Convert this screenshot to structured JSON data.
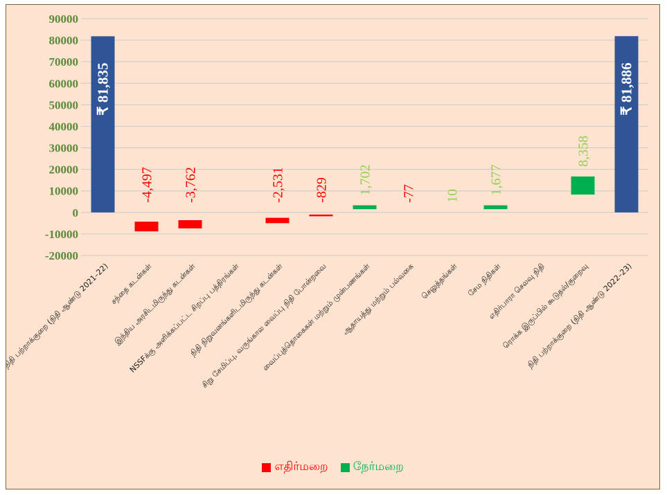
{
  "colors": {
    "negative": "#ff0000",
    "positive": "#00b050",
    "total": "#2f5597",
    "grid": "#c9c9c9",
    "axis_text": "#5b8a3a",
    "background": "#fde3d0",
    "positive_label": "#92d050"
  },
  "legend": {
    "negative_label": "எதிர்மறை",
    "positive_label": "நேர்மறை"
  },
  "chart_data": {
    "type": "bar",
    "subtype": "waterfall",
    "ylim": [
      -20000,
      90000
    ],
    "yticks": [
      90000,
      80000,
      70000,
      60000,
      50000,
      40000,
      30000,
      20000,
      10000,
      0,
      -10000,
      -20000
    ],
    "ytick_labels": [
      "90000",
      "80000",
      "70000",
      "60000",
      "50000",
      "40000",
      "30000",
      "20000",
      "10000",
      "0",
      "-10000",
      "-20000"
    ],
    "grid": true,
    "legend_position": "bottom",
    "bars": [
      {
        "category": "நிதி பற்றாக்குறை (நிதி ஆண்டு 2021–22)",
        "kind": "total",
        "low": 0,
        "high": 81835,
        "label": "₹ 81,835"
      },
      {
        "category": "சந்தை கடன்கள்",
        "kind": "negative",
        "low": -8800,
        "high": -4300,
        "label": "-4,497"
      },
      {
        "category": "இந்திய அரசிடமிருந்து கடன்கள்",
        "kind": "negative",
        "low": -7400,
        "high": -3600,
        "label": "-3,762"
      },
      {
        "category": "NSSFக்கு அளிக்கப்பட்ட சிறப்பு பத்திரங்கள்",
        "kind": "negative",
        "low": 0,
        "high": 0,
        "label": ""
      },
      {
        "category": "நிதி நிறுவனங்களிடமிருந்து கடன்கள்",
        "kind": "negative",
        "low": -5000,
        "high": -2500,
        "label": "-2,531"
      },
      {
        "category": "சிறு சேமிப்பு, வருங்கால வைப்பு நிதி போன்றவை",
        "kind": "negative",
        "low": -1800,
        "high": -1000,
        "label": "-829"
      },
      {
        "category": "வைப்புத்தொகைகள் மற்றும் முன்பணங்கள்",
        "kind": "positive",
        "low": 1500,
        "high": 3300,
        "label": "1,702"
      },
      {
        "category": "ஆதாயத்து மற்றும் பல்வகை",
        "kind": "negative",
        "low": 0,
        "high": 0,
        "label": "-77"
      },
      {
        "category": "செலுத்தங்கள்",
        "kind": "positive",
        "low": 0,
        "high": 0,
        "label": "10"
      },
      {
        "category": "சேம நிதிகள்",
        "kind": "positive",
        "low": 1500,
        "high": 3300,
        "label": "1,677"
      },
      {
        "category": "எதிர்பாரா செலவு நிதி",
        "kind": "positive",
        "low": 0,
        "high": 0,
        "label": ""
      },
      {
        "category": "ரொக்க இருப்பில் கூடுதல்/குறைவு",
        "kind": "positive",
        "low": 8300,
        "high": 16700,
        "label": "8,358"
      },
      {
        "category": "நிதி பற்றாக்குறை (நிதி ஆண்டு 2022–23)",
        "kind": "total",
        "low": 0,
        "high": 81886,
        "label": "₹ 81,886"
      }
    ]
  }
}
